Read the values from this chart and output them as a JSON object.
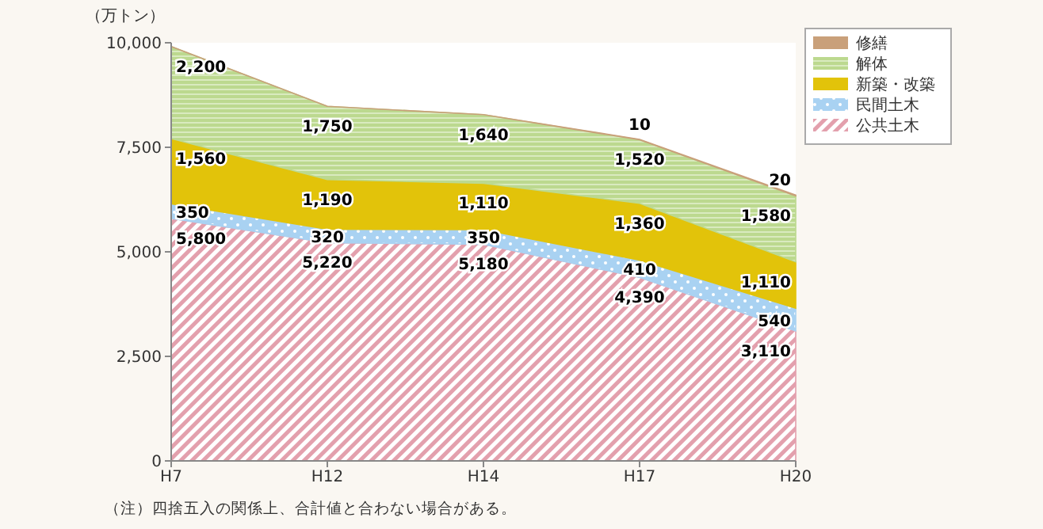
{
  "chart_data": {
    "type": "area",
    "stacked": true,
    "ylabel": "（万トン）",
    "categories": [
      "H7",
      "H12",
      "H14",
      "H17",
      "H20"
    ],
    "ylim": [
      0,
      10000
    ],
    "yticks": [
      {
        "value": 0,
        "label": "0"
      },
      {
        "value": 2500,
        "label": "2,500"
      },
      {
        "value": 5000,
        "label": "5,000"
      },
      {
        "value": 7500,
        "label": "7,500"
      },
      {
        "value": 10000,
        "label": "10,000"
      }
    ],
    "grid": false,
    "legend": "top right",
    "series": [
      {
        "name": "公共土木",
        "color": "#e3a0ad",
        "values": [
          5800,
          5220,
          5180,
          4390,
          3110
        ],
        "value_labels": [
          "5,800",
          "5,220",
          "5,180",
          "4,390",
          "3,110"
        ]
      },
      {
        "name": "民間土木",
        "color": "#a9d2f2",
        "values": [
          350,
          320,
          350,
          410,
          540
        ],
        "value_labels": [
          "350",
          "320",
          "350",
          "410",
          "540"
        ]
      },
      {
        "name": "新築・改築",
        "color": "#e2c30a",
        "values": [
          1560,
          1190,
          1110,
          1360,
          1110
        ],
        "value_labels": [
          "1,560",
          "1,190",
          "1,110",
          "1,360",
          "1,110"
        ]
      },
      {
        "name": "解体",
        "color": "#bcd98f",
        "values": [
          2200,
          1750,
          1640,
          1520,
          1580
        ],
        "value_labels": [
          "2,200",
          "1,750",
          "1,640",
          "1,520",
          "1,580"
        ]
      },
      {
        "name": "修繕",
        "color": "#c9a07a",
        "values": [
          0,
          0,
          0,
          10,
          20
        ],
        "value_labels": [
          null,
          null,
          null,
          "10",
          "20"
        ]
      }
    ],
    "annotations": [
      "（注）四捨五入の関係上、合計値と合わない場合がある。"
    ]
  }
}
